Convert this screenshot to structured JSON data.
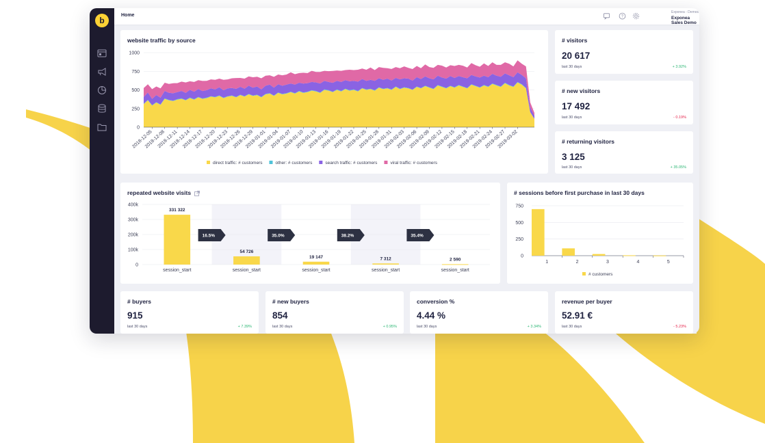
{
  "brand": {
    "logo_letter": "b",
    "accent": "#fcd235",
    "sidebar_bg": "#1d1b2e"
  },
  "sidebar": {
    "icons": [
      "dashboard-icon",
      "megaphone-icon",
      "pie-chart-icon",
      "database-icon",
      "folder-icon"
    ]
  },
  "topbar": {
    "breadcrumb": "Home",
    "icons": [
      "chat-icon",
      "help-icon",
      "settings-icon"
    ],
    "project_org": "Exponea - Demos",
    "project_name": "Exponea Sales Demo"
  },
  "kpis": {
    "visitors": {
      "title": "# visitors",
      "value": "20 617",
      "period": "last 30 days",
      "delta": "+ 3.92%"
    },
    "new_visitors": {
      "title": "# new visitors",
      "value": "17 492",
      "period": "last 30 days",
      "delta": "- 0.19%"
    },
    "returning_visitors": {
      "title": "# returning visitors",
      "value": "3 125",
      "period": "last 30 days",
      "delta": "+ 35.05%"
    },
    "buyers": {
      "title": "# buyers",
      "value": "915",
      "period": "last 30 days",
      "delta": "+ 7.39%"
    },
    "new_buyers": {
      "title": "# new buyers",
      "value": "854",
      "period": "last 30 days",
      "delta": "+ 0.95%"
    },
    "conversion": {
      "title": "conversion %",
      "value": "4.44 %",
      "period": "last 30 days",
      "delta": "+ 3.34%"
    },
    "revenue_per_buyer": {
      "title": "revenue per buyer",
      "value": "52.91 €",
      "period": "last 30 days",
      "delta": "- 5.23%"
    }
  },
  "chart_data": [
    {
      "type": "area",
      "title": "website traffic by source",
      "stacked": true,
      "ylim": [
        0,
        1000
      ],
      "yticks": [
        0,
        250,
        500,
        750,
        1000
      ],
      "grid": true,
      "legend_position": "bottom",
      "x_tick_labels": [
        "2018-12-05",
        "2018-12-08",
        "2018-12-11",
        "2018-12-14",
        "2018-12-17",
        "2018-12-20",
        "2018-12-23",
        "2018-12-26",
        "2018-12-29",
        "2019-01-01",
        "2019-01-04",
        "2019-01-07",
        "2019-01-10",
        "2019-01-13",
        "2019-01-16",
        "2019-01-19",
        "2019-01-22",
        "2019-01-25",
        "2019-01-28",
        "2019-01-31",
        "2019-02-03",
        "2019-02-06",
        "2019-02-09",
        "2019-02-12",
        "2019-02-15",
        "2019-02-18",
        "2019-02-21",
        "2019-02-24",
        "2019-02-27",
        "2019-03-02"
      ],
      "x": [
        "2018-12-03",
        "2018-12-04",
        "2018-12-05",
        "2018-12-06",
        "2018-12-07",
        "2018-12-08",
        "2018-12-09",
        "2018-12-10",
        "2018-12-11",
        "2018-12-12",
        "2018-12-13",
        "2018-12-14",
        "2018-12-15",
        "2018-12-16",
        "2018-12-17",
        "2018-12-18",
        "2018-12-19",
        "2018-12-20",
        "2018-12-21",
        "2018-12-22",
        "2018-12-23",
        "2018-12-24",
        "2018-12-25",
        "2018-12-26",
        "2018-12-27",
        "2018-12-28",
        "2018-12-29",
        "2018-12-30",
        "2018-12-31",
        "2019-01-01",
        "2019-01-02",
        "2019-01-03",
        "2019-01-04",
        "2019-01-05",
        "2019-01-06",
        "2019-01-07",
        "2019-01-08",
        "2019-01-09",
        "2019-01-10",
        "2019-01-11",
        "2019-01-12",
        "2019-01-13",
        "2019-01-14",
        "2019-01-15",
        "2019-01-16",
        "2019-01-17",
        "2019-01-18",
        "2019-01-19",
        "2019-01-20",
        "2019-01-21",
        "2019-01-22",
        "2019-01-23",
        "2019-01-24",
        "2019-01-25",
        "2019-01-26",
        "2019-01-27",
        "2019-01-28",
        "2019-01-29",
        "2019-01-30",
        "2019-01-31",
        "2019-02-01",
        "2019-02-02",
        "2019-02-03",
        "2019-02-04",
        "2019-02-05",
        "2019-02-06",
        "2019-02-07",
        "2019-02-08",
        "2019-02-09",
        "2019-02-10",
        "2019-02-11",
        "2019-02-12",
        "2019-02-13",
        "2019-02-14",
        "2019-02-15",
        "2019-02-16",
        "2019-02-17",
        "2019-02-18",
        "2019-02-19",
        "2019-02-20",
        "2019-02-21",
        "2019-02-22",
        "2019-02-23",
        "2019-02-24",
        "2019-02-25",
        "2019-02-26",
        "2019-02-27",
        "2019-02-28",
        "2019-03-01",
        "2019-03-02",
        "2019-03-03",
        "2019-03-04",
        "2019-03-05",
        "2019-03-06"
      ],
      "series": [
        {
          "name": "direct traffic: # customers",
          "color": "#f9d84a",
          "values": [
            310,
            360,
            290,
            330,
            300,
            380,
            360,
            350,
            370,
            380,
            360,
            390,
            370,
            400,
            380,
            390,
            410,
            400,
            420,
            390,
            410,
            420,
            400,
            430,
            410,
            440,
            420,
            430,
            400,
            440,
            450,
            420,
            460,
            440,
            450,
            470,
            450,
            480,
            460,
            470,
            490,
            480,
            460,
            500,
            490,
            470,
            500,
            480,
            510,
            490,
            500,
            480,
            520,
            500,
            510,
            490,
            530,
            510,
            520,
            500,
            540,
            510,
            530,
            520,
            500,
            540,
            520,
            550,
            530,
            510,
            560,
            540,
            520,
            550,
            530,
            560,
            540,
            520,
            570,
            550,
            530,
            560,
            540,
            580,
            560,
            540,
            590,
            560,
            540,
            600,
            570,
            520,
            200,
            110
          ]
        },
        {
          "name": "other: # customers",
          "color": "#4fc3d9",
          "values": [
            5,
            6,
            5,
            6,
            5,
            6,
            6,
            5,
            6,
            6,
            5,
            6,
            6,
            6,
            5,
            6,
            6,
            6,
            6,
            5,
            6,
            6,
            5,
            6,
            6,
            6,
            5,
            6,
            6,
            6,
            6,
            5,
            6,
            6,
            6,
            6,
            6,
            6,
            5,
            6,
            6,
            6,
            6,
            6,
            6,
            5,
            6,
            6,
            6,
            6,
            6,
            6,
            6,
            6,
            5,
            6,
            6,
            6,
            6,
            6,
            6,
            6,
            6,
            6,
            5,
            6,
            6,
            6,
            6,
            6,
            6,
            6,
            6,
            6,
            6,
            6,
            5,
            6,
            6,
            6,
            6,
            6,
            6,
            6,
            6,
            6,
            6,
            6,
            6,
            6,
            6,
            6,
            3,
            2
          ]
        },
        {
          "name": "search traffic: # customers",
          "color": "#8a63e3",
          "values": [
            90,
            100,
            85,
            95,
            90,
            100,
            95,
            100,
            95,
            100,
            95,
            105,
            100,
            105,
            100,
            100,
            105,
            100,
            110,
            100,
            105,
            100,
            110,
            105,
            100,
            110,
            105,
            110,
            100,
            110,
            115,
            105,
            110,
            110,
            115,
            110,
            115,
            110,
            120,
            115,
            110,
            115,
            120,
            115,
            110,
            120,
            115,
            120,
            115,
            120,
            115,
            125,
            120,
            115,
            120,
            125,
            120,
            120,
            125,
            120,
            115,
            125,
            120,
            125,
            120,
            125,
            120,
            125,
            120,
            125,
            125,
            120,
            125,
            130,
            125,
            120,
            125,
            130,
            125,
            125,
            130,
            125,
            125,
            130,
            125,
            130,
            125,
            130,
            125,
            130,
            125,
            130,
            60,
            40
          ]
        },
        {
          "name": "viral traffic: # customers",
          "color": "#e069a6",
          "values": [
            120,
            110,
            130,
            115,
            125,
            110,
            120,
            135,
            120,
            125,
            140,
            115,
            130,
            120,
            135,
            125,
            120,
            130,
            115,
            140,
            120,
            130,
            145,
            120,
            135,
            125,
            140,
            130,
            150,
            135,
            125,
            145,
            130,
            140,
            135,
            150,
            140,
            130,
            145,
            135,
            150,
            140,
            155,
            135,
            145,
            160,
            140,
            150,
            135,
            155,
            145,
            160,
            140,
            150,
            165,
            145,
            150,
            160,
            140,
            155,
            145,
            150,
            160,
            145,
            155,
            150,
            145,
            160,
            150,
            155,
            145,
            160,
            150,
            145,
            160,
            150,
            155,
            145,
            160,
            150,
            145,
            165,
            150,
            155,
            145,
            160,
            150,
            155,
            145,
            160,
            150,
            160,
            70,
            40
          ]
        }
      ]
    },
    {
      "type": "bar",
      "title": "repeated website visits",
      "categories": [
        "session_start",
        "session_start",
        "session_start",
        "session_start",
        "session_start"
      ],
      "values": [
        331322,
        54726,
        19147,
        7312,
        2590
      ],
      "value_labels": [
        "331 322",
        "54 726",
        "19 147",
        "7 312",
        "2 590"
      ],
      "conversion_labels": [
        "16.5%",
        "35.0%",
        "38.2%",
        "35.4%"
      ],
      "ylim": [
        0,
        400000
      ],
      "yticks": [
        0,
        100000,
        200000,
        300000,
        400000
      ],
      "ytick_labels": [
        "0",
        "100k",
        "200k",
        "300k",
        "400k"
      ],
      "grid": true,
      "color": "#f9d84a"
    },
    {
      "type": "bar",
      "title": "# sessions before first purchase in last 30 days",
      "categories": [
        "1",
        "2",
        "3",
        "4",
        "5"
      ],
      "values": [
        700,
        110,
        25,
        6,
        3
      ],
      "ylim": [
        0,
        750
      ],
      "yticks": [
        0,
        250,
        500,
        750
      ],
      "grid": true,
      "legend_position": "bottom",
      "series_name": "# customers",
      "color": "#f9d84a"
    }
  ]
}
